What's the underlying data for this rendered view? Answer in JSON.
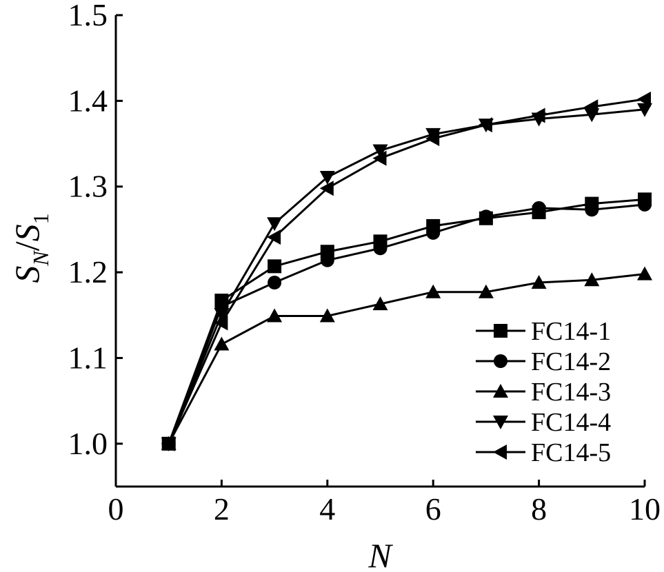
{
  "chart_data": {
    "type": "line",
    "xlabel": "N",
    "ylabel": {
      "main": "S",
      "sub1": "N",
      "sep": "/",
      "main2": "S",
      "sub2": "1"
    },
    "xlim": [
      0,
      10
    ],
    "ylim": [
      0.95,
      1.5
    ],
    "xticks": [
      0,
      2,
      4,
      6,
      8,
      10
    ],
    "xtick_labels": [
      "0",
      "2",
      "4",
      "6",
      "8",
      "10"
    ],
    "yticks": [
      1.0,
      1.1,
      1.2,
      1.3,
      1.4,
      1.5
    ],
    "ytick_labels": [
      "1.0",
      "1.1",
      "1.2",
      "1.3",
      "1.4",
      "1.5"
    ],
    "grid": false,
    "legend_position": "bottom-right",
    "colors": {
      "line": "#000000",
      "background": "#ffffff"
    },
    "x": [
      1,
      2,
      3,
      4,
      5,
      6,
      7,
      8,
      9,
      10
    ],
    "series": [
      {
        "name": "FC14-1",
        "marker": "square",
        "values": [
          1.0,
          1.167,
          1.207,
          1.224,
          1.236,
          1.254,
          1.263,
          1.27,
          1.28,
          1.285
        ]
      },
      {
        "name": "FC14-2",
        "marker": "circle",
        "values": [
          1.0,
          1.16,
          1.188,
          1.214,
          1.228,
          1.246,
          1.265,
          1.275,
          1.273,
          1.279
        ]
      },
      {
        "name": "FC14-3",
        "marker": "triangle-up",
        "values": [
          1.0,
          1.116,
          1.149,
          1.149,
          1.163,
          1.177,
          1.177,
          1.188,
          1.191,
          1.198
        ]
      },
      {
        "name": "FC14-4",
        "marker": "triangle-down",
        "values": [
          1.0,
          1.151,
          1.257,
          1.311,
          1.342,
          1.361,
          1.372,
          1.379,
          1.384,
          1.39
        ]
      },
      {
        "name": "FC14-5",
        "marker": "triangle-left",
        "values": [
          1.0,
          1.141,
          1.241,
          1.298,
          1.333,
          1.356,
          1.372,
          1.383,
          1.393,
          1.402
        ]
      }
    ]
  }
}
